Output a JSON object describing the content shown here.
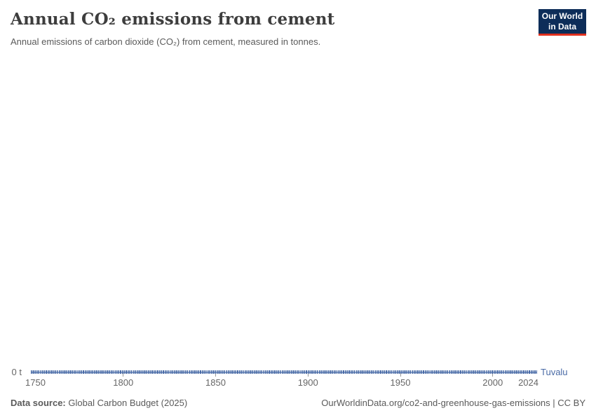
{
  "header": {
    "title": "Annual CO₂ emissions from cement",
    "subtitle": "Annual emissions of carbon dioxide (CO₂) from cement, measured in tonnes.",
    "logo": {
      "line1": "Our World",
      "line2": "in Data",
      "bg": "#0d2d59",
      "accent": "#e0301e"
    }
  },
  "chart_data": {
    "type": "line",
    "title": "Annual CO₂ emissions from cement",
    "unit": "tonnes",
    "x": {
      "min": 1750,
      "max": 2024,
      "ticks": [
        1750,
        1800,
        1850,
        1900,
        1950,
        2000,
        2024
      ]
    },
    "y": {
      "min": 0,
      "zero_tick_label": "0 t"
    },
    "series": [
      {
        "name": "Tuvalu",
        "color": "#4a6ba6",
        "color_light": "#93a9cf",
        "x_start": 1750,
        "x_end": 2024,
        "constant_value": 0
      }
    ],
    "grid": "off",
    "legend_position": "end-of-line-label"
  },
  "footer": {
    "source_label": "Data source:",
    "source_text": "Global Carbon Budget (2025)",
    "citation": "OurWorldinData.org/co2-and-greenhouse-gas-emissions | CC BY"
  }
}
